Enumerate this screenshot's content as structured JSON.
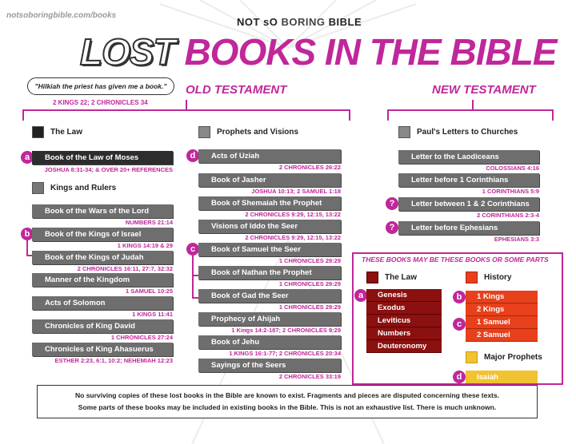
{
  "site_url": "notsoboringbible.com/books",
  "brand": {
    "prefix": "NOT sO ",
    "main": "BORING",
    "suffix": " BIBLE"
  },
  "title": {
    "lost": "LOST",
    "rest": " BOOKS IN THE BIBLE"
  },
  "quote": {
    "text": "\"Hilkiah the priest has given me a book.\"",
    "ref": "2 KINGS 22; 2 CHRONICLES 34"
  },
  "old_testament_label": "OLD TESTAMENT",
  "new_testament_label": "NEW TESTAMENT",
  "col1": {
    "law_label": "The Law",
    "law_badge": "a",
    "law_book": "Book of the Law of Moses",
    "law_ref": "JOSHUA 8:31-34; & OVER 20+ REFERENCES",
    "kings_label": "Kings and Rulers",
    "kings_badge": "b",
    "books": [
      {
        "title": "Book of the Wars of the Lord",
        "ref": "NUMBERS 21:14"
      },
      {
        "title": "Book of the Kings of Israel",
        "ref": "1 KINGS 14:19 & 29"
      },
      {
        "title": "Book of the Kings of Judah",
        "ref": "2 CHRONICLES 16:11, 27:7, 32:32"
      },
      {
        "title": "Manner of the Kingdom",
        "ref": "1 SAMUEL 10:25"
      },
      {
        "title": "Acts of Solomon",
        "ref": "1 KINGS 11:41"
      },
      {
        "title": "Chronicles of King David",
        "ref": "1 CHRONICLES 27:24"
      },
      {
        "title": "Chronicles of King Ahasuerus",
        "ref": "ESTHER 2:23, 6:1, 10:2; NEHEMIAH 12:23"
      }
    ]
  },
  "col2": {
    "label": "Prophets and Visions",
    "badge_d": "d",
    "badge_c": "c",
    "books": [
      {
        "title": "Acts of Uziah",
        "ref": "2 CHRONICLES 26:22"
      },
      {
        "title": "Book of Jasher",
        "ref": "JOSHUA 10:13; 2 SAMUEL 1:18"
      },
      {
        "title": "Book of Shemaiah the Prophet",
        "ref": "2 CHRONICLES 9:29, 12:15, 13:22"
      },
      {
        "title": "Visions of Iddo the Seer",
        "ref": "2 CHRONICLES 9:29, 12:15, 13:22"
      },
      {
        "title": "Book of Samuel the Seer",
        "ref": "1 CHRONICLES 29:29"
      },
      {
        "title": "Book of Nathan the Prophet",
        "ref": "1 CHRONICLES 29:29"
      },
      {
        "title": "Book of Gad the Seer",
        "ref": "1 CHRONICLES 29:29"
      },
      {
        "title": "Prophecy of Ahijah",
        "ref": "1 Kings 14:2-187; 2 CHRONICLES 9:29"
      },
      {
        "title": "Book of Jehu",
        "ref": "1 KINGS 16:1-77; 2 CHRONICLES 20:34"
      },
      {
        "title": "Sayings of the Seers",
        "ref": "2 CHRONICLES 33:19"
      }
    ]
  },
  "col3": {
    "label": "Paul's Letters to Churches",
    "q_badge": "?",
    "books": [
      {
        "title": "Letter to the Laodiceans",
        "ref": "COLOSSIANS 4:16"
      },
      {
        "title": "Letter before 1 Corinthians",
        "ref": "1 CORINTHIANS 5:9"
      },
      {
        "title": "Letter between 1 & 2 Corinthians",
        "ref": "2 CORINTHIANS 2:3-4"
      },
      {
        "title": "Letter before Ephesians",
        "ref": "EPHESIANS 3:3"
      }
    ]
  },
  "may_be": {
    "title": "THESE BOOKS MAY BE THESE BOOKS OR SOME PARTS",
    "law_label": "The Law",
    "law_books": [
      "Genesis",
      "Exodus",
      "Leviticus",
      "Numbers",
      "Deuteronomy"
    ],
    "history_label": "History",
    "history_b": [
      "1 Kings",
      "2 Kings"
    ],
    "history_c": [
      "1 Samuel",
      "2 Samuel"
    ],
    "prophets_label": "Major Prophets",
    "prophets_books": [
      "Isaiah"
    ],
    "badges": {
      "a": "a",
      "b": "b",
      "c": "c",
      "d": "d"
    }
  },
  "colors": {
    "accent": "#c0279a",
    "law": "#8b1010",
    "history": "#e8401c",
    "prophets": "#f1c232",
    "grey_book": "#6e6e6e"
  },
  "footer": {
    "line1": "No surviving copies of these lost books in the Bible are known to exist. Fragments and pieces are disputed concerning these texts.",
    "line2": "Some parts of these books may be included in existing books in the Bible. This is not an exhaustive list. There is much unknown."
  }
}
